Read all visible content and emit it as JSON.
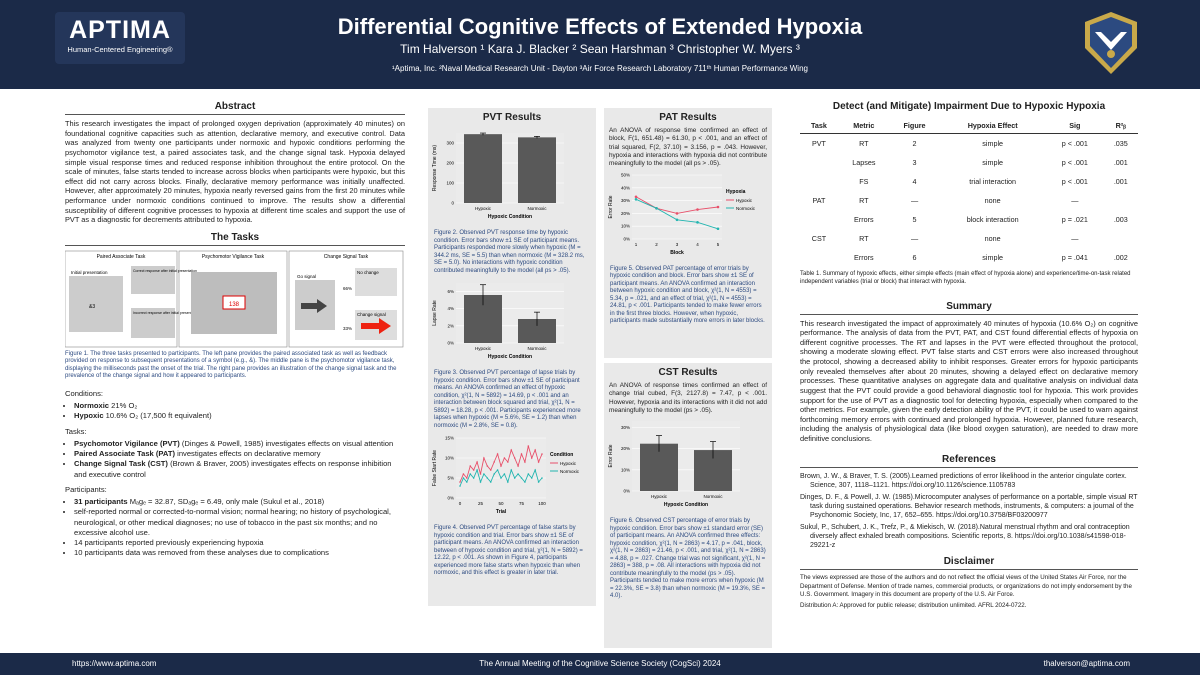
{
  "header": {
    "title": "Differential Cognitive Effects of Extended Hypoxia",
    "authors": "Tim Halverson ¹    Kara J. Blacker ²    Sean Harshman ³    Christopher W. Myers ³",
    "affiliations": "¹Aptima, Inc.        ²Naval Medical Research Unit - Dayton        ³Air Force Research Laboratory 711ᵗʰ Human Performance Wing",
    "logo_name": "APTIMA",
    "logo_tag": "Human-Centered Engineering®"
  },
  "abstract": {
    "heading": "Abstract",
    "text": "This research investigates the impact of prolonged oxygen deprivation (approximately 40 minutes) on foundational cognitive capacities such as attention, declarative memory, and executive control. Data was analyzed from twenty one participants under normoxic and hypoxic conditions performing the psychomotor vigilance test, a paired associates task, and the change signal task. Hypoxia delayed simple visual response times and reduced response inhibition throughout the entire protocol. On the scale of minutes, false starts tended to increase across blocks when participants were hypoxic, but this effect did not carry across blocks. Finally, declarative memory performance was initially unaffected. However, after approximately 20 minutes, hypoxia nearly reversed gains from the first 20 minutes while performance under normoxic conditions continued to improve. The results show a differential susceptibility of different cognitive processes to hypoxia at different time scales and support the use of PVT as a diagnostic for decrements attributed to hypoxia."
  },
  "tasks": {
    "heading": "The Tasks",
    "pane_titles": [
      "Paired Associate Task",
      "Psychomotor Vigilance Task",
      "Change Signal Task"
    ],
    "pat_labels": [
      "Initial presentation",
      "&3",
      "Correct response after initial presentation",
      "Incorrect response after initial presentation"
    ],
    "pvt_value": "138",
    "cst_labels": [
      "Go signal",
      "No change",
      "66%",
      "Change signal",
      "33%"
    ],
    "caption": "Figure 1. The three tasks presented to participants. The left pane provides the paired associated task as well as feedback provided on response to subsequent presentations of a symbol (e.g., &). The middle pane is the psychomotor vigilance task, displaying the milliseconds past the onset of the trial. The right pane provides an illustration of the change signal task and the prevalence of the change signal and how it appeared to participants.",
    "conditions_label": "Conditions:",
    "conditions": [
      {
        "bold": "Normoxic",
        "rest": " 21% O₂"
      },
      {
        "bold": "Hypoxic",
        "rest": " 10.6% O₂ (17,500 ft equivalent)"
      }
    ],
    "tasks_label": "Tasks:",
    "task_list": [
      {
        "bold": "Psychomotor Vigilance (PVT)",
        "rest": " (Dinges & Powell, 1985) investigates effects on visual attention"
      },
      {
        "bold": "Paired Associate Task (PAT)",
        "rest": " investigates effects on declarative memory"
      },
      {
        "bold": "Change Signal Task (CST)",
        "rest": " (Brown & Braver, 2005) investigates effects on response inhibition and executive control"
      }
    ],
    "participants_label": "Participants:",
    "participants": [
      {
        "bold": "31 participants",
        "rest": " Mₐgₑ = 32.87, SDₐgₑ = 6.49, only male (Sukul et al., 2018)"
      },
      {
        "bold": "",
        "rest": "self-reported normal or corrected-to-normal vision; normal hearing; no history of psychological, neurological, or other medical diagnoses; no use of tobacco in the past six months; and no excessive alcohol use."
      },
      {
        "bold": "",
        "rest": "14 participants reported previously experiencing hypoxia"
      },
      {
        "bold": "",
        "rest": "10 participants data was removed from these analyses due to complications"
      }
    ]
  },
  "pvt": {
    "heading": "PVT Results",
    "fig2": {
      "ylabel": "Response Time (ms)",
      "xlabel": "Hypoxic Condition",
      "yticks": [
        "0",
        "100",
        "200",
        "300"
      ],
      "cats": [
        "Hypoxic",
        "Normoxic"
      ]
    },
    "cap2": "Figure 2. Observed PVT response time by hypoxic condition. Error bars show ±1 SE of participant means. Participants responded more slowly when hypoxic (M = 344.2 ms, SE = 5.5) than when normoxic (M = 328.2 ms, SE = 5.0). No interactions with hypoxic condition contributed meaningfully to the model (all ps > .05).",
    "fig3": {
      "ylabel": "Lapse Rate",
      "xlabel": "Hypoxic Condition",
      "yticks": [
        "0%",
        "2%",
        "4%",
        "6%"
      ],
      "cats": [
        "Hypoxic",
        "Normoxic"
      ]
    },
    "cap3": "Figure 3. Observed PVT percentage of lapse trials by hypoxic condition. Error bars show ±1 SE of participant means. An ANOVA confirmed an effect of hypoxic condition, χ²(1, N = 5892) = 14.69, p < .001 and an interaction between block squared and trial, χ²(1, N = 5892) = 18.28, p < .001. Participants experienced more lapses when hypoxic (M = 5.6%, SE = 1.2) than when normoxic (M = 2.8%, SE = 0.8).",
    "fig4": {
      "ylabel": "False Start Rate",
      "xlabel": "Trial",
      "yticks": [
        "0%",
        "5%",
        "10%",
        "15%"
      ],
      "xticks": [
        "0",
        "25",
        "50",
        "75",
        "100"
      ],
      "legend_title": "Condition",
      "legend": [
        "Hypoxic",
        "Normoxic"
      ]
    },
    "cap4": "Figure 4. Observed PVT percentage of false starts by hypoxic condition and trial. Error bars show ±1 SE of participant means. An ANOVA confirmed an interaction between of hypoxic condition and trial, χ²(1, N = 5892) = 12.22, p < .001. As shown in Figure 4, participants experienced more false starts when hypoxic than when normoxic, and this effect is greater in later trial."
  },
  "pat": {
    "heading": "PAT Results",
    "text": "An ANOVA of response time confirmed an effect of block, F(1, 651.48) = 61.30, p < .001, and an effect of trial squared, F(2, 37.10) = 3.156, p = .043. However, hypoxia and interactions with hypoxia did not contribute meaningfully to the model (all ps > .05).",
    "fig5": {
      "ylabel": "Error Rate",
      "xlabel": "Block",
      "yticks": [
        "0%",
        "10%",
        "20%",
        "30%",
        "40%",
        "50%"
      ],
      "xticks": [
        "1",
        "2",
        "3",
        "4",
        "5"
      ],
      "legend_title": "Hypoxia",
      "legend": [
        "Hypoxic",
        "Normoxic"
      ]
    },
    "cap5": "Figure 5. Observed PAT percentage of error trials by hypoxic condition and block. Error bars show ±1 SE of participant means. An ANOVA confirmed an interaction between hypoxic condition and block, χ²(1, N = 4553) = 5.34, p = .021, and an effect of trial, χ²(1, N = 4553) = 24.81, p < .001. Participants tended to make fewer errors in the first three blocks. However, when hypoxic, participants made substantially more errors in later blocks."
  },
  "cst": {
    "heading": "CST Results",
    "text": "An ANOVA of response times confirmed an effect of change trial cubed, F(3, 2127.8) = 7.47, p < .001. However, hypoxia and its interactions with it did not add meaningfully to the model (ps > .05).",
    "fig6": {
      "ylabel": "Error Rate",
      "xlabel": "Hypoxic Condition",
      "yticks": [
        "0%",
        "10%",
        "20%",
        "30%"
      ],
      "cats": [
        "Hypoxic",
        "Normoxic"
      ]
    },
    "cap6": "Figure 6. Observed CST percentage of error trials by hypoxic condition. Error bars show ±1 standard error (SE) of participant means. An ANOVA confirmed three effects: hypoxic condition, χ²(1, N = 2863) = 4.17, p = .041, block, χ²(1, N = 2863) = 21.46, p < .001, and trial, χ²(1, N = 2863) = 4.88, p = .027. Change trial was not significant, χ²(1, N = 2863) = 388, p = .08. All interactions with hypoxia did not contribute meaningfully to the model (ps > .05). Participants tended to make more errors when hypoxic (M = 22.3%, SE = 3.8) than when normoxic (M = 19.3%, SE = 4.0)."
  },
  "detect": {
    "heading": "Detect (and Mitigate) Impairment Due to Hypoxic Hypoxia",
    "columns": [
      "Task",
      "Metric",
      "Figure",
      "Hypoxia Effect",
      "Sig",
      "R²ᵦ"
    ],
    "rows": [
      [
        "PVT",
        "RT",
        "2",
        "simple",
        "p < .001",
        ".035"
      ],
      [
        "",
        "Lapses",
        "3",
        "simple",
        "p < .001",
        ".001"
      ],
      [
        "",
        "FS",
        "4",
        "trial interaction",
        "p < .001",
        ".001"
      ],
      [
        "PAT",
        "RT",
        "—",
        "none",
        "—",
        ""
      ],
      [
        "",
        "Errors",
        "5",
        "block interaction",
        "p = .021",
        ".003"
      ],
      [
        "CST",
        "RT",
        "—",
        "none",
        "—",
        ""
      ],
      [
        "",
        "Errors",
        "6",
        "simple",
        "p = .041",
        ".002"
      ]
    ],
    "caption": "Table 1. Summary of hypoxic effects, either simple effects (main effect of hypoxia alone) and experience/time-on-task related independent variables (trial or block) that interact with hypoxia."
  },
  "summary": {
    "heading": "Summary",
    "text": "This research investigated the impact of approximately 40 minutes of hypoxia (10.6% O₂) on cognitive performance. The analysis of data from the PVT, PAT, and CST found differential effects of hypoxia on different cognitive processes. The RT and lapses in the PVT were effected throughout the protocol, showing a moderate slowing effect. PVT false starts and CST errors were also increased throughout the protocol, showing a decreased ability to inhibit responses. Greater errors for hypoxic participants only revealed themselves after about 20 minutes, showing a delayed effect on declarative memory processes. These quantitative analyses on aggregate data and qualitative analysis on individual data suggest that the PVT could provide a good behavioral diagnostic tool for hypoxia. This work provides support for the use of PVT as a diagnostic tool for detecting hypoxia, especially when compared to the other metrics. For example, given the early detection ability of the PVT, it could be used to warn against forthcoming memory errors with continued and prolonged hypoxia. However, planned future research, including the analysis of physiological data (like blood oxygen saturation), are needed to draw more definitive conclusions."
  },
  "references": {
    "heading": "References",
    "items": [
      "Brown, J. W., & Braver, T. S. (2005).Learned predictions of error likelihood in the anterior cingulate cortex. Science, 307, 1118–1121. https://doi.org/10.1126/science.1105783",
      "Dinges, D. F., & Powell, J. W. (1985).Microcomputer analyses of performance on a portable, simple visual RT task during sustained operations. Behavior research methods, instruments, & computers: a journal of the Psychonomic Society, Inc, 17, 652–655. https://doi.org/10.3758/BF03200977",
      "Sukul, P., Schubert, J. K., Trefz, P., & Miekisch, W. (2018).Natural menstrual rhythm and oral contraception diversely affect exhaled breath compositions. Scientific reports, 8. https://doi.org/10.1038/s41598-018-29221-z"
    ]
  },
  "disclaimer": {
    "heading": "Disclaimer",
    "text": "The views expressed are those of the authors and do not reflect the official views of the United States Air Force, nor the Department of Defense. Mention of trade names, commercial products, or organizations do not imply endorsement by the U.S. Government. Imagery in this document are property of the U.S. Air Force.",
    "distribution": "Distribution A: Approved for public release; distribution unlimited. AFRL 2024-0722."
  },
  "footer": {
    "left": "https://www.aptima.com",
    "center": "The Annual Meeting of the Cognitive Science Society (CogSci) 2024",
    "right": "thalverson@aptima.com"
  },
  "colors": {
    "header": "#1b2a48",
    "hypoxic": "#e8506a",
    "normoxic": "#22b5b0",
    "bar": "#595959"
  },
  "chart_data": [
    {
      "type": "bar",
      "categories": [
        "Hypoxic",
        "Normoxic"
      ],
      "values": [
        344.2,
        328.2
      ],
      "errors": [
        5.5,
        5.0
      ],
      "ylabel": "Response Time (ms)",
      "xlabel": "Hypoxic Condition",
      "ylim": [
        0,
        350
      ]
    },
    {
      "type": "bar",
      "categories": [
        "Hypoxic",
        "Normoxic"
      ],
      "values": [
        5.6,
        2.8
      ],
      "errors": [
        1.2,
        0.8
      ],
      "ylabel": "Lapse Rate",
      "xlabel": "Hypoxic Condition",
      "ylim": [
        0,
        7
      ]
    },
    {
      "type": "line",
      "xlabel": "Trial",
      "ylabel": "False Start Rate",
      "ylim": [
        0,
        15
      ],
      "xlim": [
        0,
        100
      ],
      "series": [
        {
          "name": "Hypoxic",
          "values": [
            4,
            6,
            5,
            8,
            7,
            9,
            6,
            10,
            8,
            7,
            9,
            11,
            8,
            10,
            9,
            12,
            10,
            8,
            11,
            9,
            13,
            10,
            12,
            9,
            11
          ]
        },
        {
          "name": "Normoxic",
          "values": [
            3,
            5,
            4,
            6,
            5,
            7,
            4,
            6,
            5,
            4,
            6,
            7,
            5,
            6,
            4,
            7,
            5,
            6,
            5,
            4,
            6,
            5,
            7,
            4,
            5
          ]
        }
      ]
    },
    {
      "type": "line",
      "xlabel": "Block",
      "ylabel": "Error Rate",
      "x": [
        1,
        2,
        3,
        4,
        5
      ],
      "ylim": [
        0,
        50
      ],
      "series": [
        {
          "name": "Hypoxic",
          "values": [
            33,
            24,
            20,
            23,
            25
          ]
        },
        {
          "name": "Normoxic",
          "values": [
            31,
            24,
            15,
            13,
            8
          ]
        }
      ]
    },
    {
      "type": "bar",
      "categories": [
        "Hypoxic",
        "Normoxic"
      ],
      "values": [
        22.3,
        19.3
      ],
      "errors": [
        3.8,
        4.0
      ],
      "ylabel": "Error Rate",
      "xlabel": "Hypoxic Condition",
      "ylim": [
        0,
        33
      ]
    }
  ]
}
